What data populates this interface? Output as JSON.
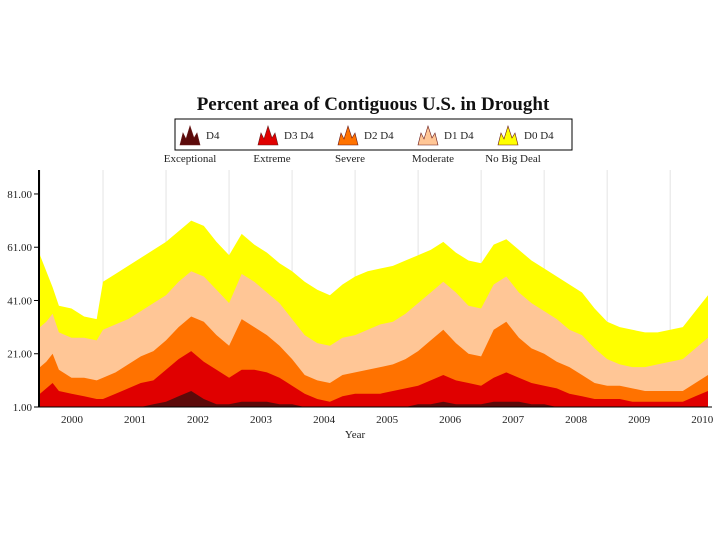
{
  "chart_data": {
    "type": "area",
    "title": "Percent area of Contiguous U.S. in Drought",
    "xlabel": "Year",
    "ylabel": "",
    "ylim": [
      1,
      90
    ],
    "y_ticks": [
      "81.00",
      "61.00",
      "41.00",
      "21.00",
      "1.00"
    ],
    "y_tick_values": [
      81,
      61,
      41,
      21,
      1
    ],
    "x_tick_labels": [
      "2000",
      "2001",
      "2002",
      "2003",
      "2004",
      "2005",
      "2006",
      "2007",
      "2008",
      "2009",
      "2010"
    ],
    "legend_position": "top",
    "stacking": "cumulative",
    "x": [
      2000.0,
      2000.1,
      2000.2,
      2000.3,
      2000.5,
      2000.7,
      2000.9,
      2001.0,
      2001.2,
      2001.4,
      2001.6,
      2001.8,
      2002.0,
      2002.2,
      2002.4,
      2002.6,
      2002.8,
      2003.0,
      2003.2,
      2003.4,
      2003.6,
      2003.8,
      2004.0,
      2004.2,
      2004.4,
      2004.6,
      2004.8,
      2005.0,
      2005.2,
      2005.4,
      2005.6,
      2005.8,
      2006.0,
      2006.2,
      2006.4,
      2006.6,
      2006.8,
      2007.0,
      2007.2,
      2007.4,
      2007.6,
      2007.8,
      2008.0,
      2008.2,
      2008.4,
      2008.6,
      2008.8,
      2009.0,
      2009.2,
      2009.4,
      2009.6,
      2009.8,
      2010.0,
      2010.2,
      2010.4,
      2010.6
    ],
    "series": [
      {
        "name": "D4",
        "label": "Exceptional",
        "color": "#5c0a0a",
        "values": [
          1,
          1,
          1,
          1,
          1,
          1,
          1,
          1,
          1,
          1,
          1,
          2,
          3,
          5,
          7,
          4,
          2,
          2,
          3,
          3,
          3,
          2,
          2,
          1,
          1,
          1,
          1,
          1,
          1,
          1,
          1,
          1,
          2,
          2,
          3,
          2,
          2,
          2,
          3,
          3,
          3,
          2,
          2,
          1,
          1,
          1,
          1,
          1,
          1,
          1,
          1,
          1,
          1,
          1,
          1,
          1
        ]
      },
      {
        "name": "D3 D4",
        "label": "Extreme",
        "color": "#e00000",
        "values": [
          6,
          8,
          10,
          7,
          6,
          5,
          4,
          4,
          6,
          8,
          10,
          11,
          15,
          19,
          22,
          18,
          15,
          12,
          15,
          15,
          14,
          12,
          9,
          6,
          4,
          3,
          5,
          6,
          6,
          6,
          7,
          8,
          9,
          11,
          13,
          11,
          10,
          9,
          12,
          14,
          12,
          10,
          9,
          8,
          6,
          5,
          4,
          4,
          4,
          3,
          3,
          3,
          3,
          3,
          5,
          7
        ]
      },
      {
        "name": "D2 D4",
        "label": "Severe",
        "color": "#ff7200",
        "values": [
          16,
          18,
          21,
          15,
          12,
          12,
          11,
          12,
          14,
          17,
          20,
          22,
          26,
          31,
          35,
          33,
          28,
          24,
          34,
          31,
          28,
          24,
          19,
          13,
          11,
          10,
          13,
          14,
          15,
          16,
          17,
          19,
          22,
          26,
          30,
          25,
          21,
          20,
          30,
          33,
          27,
          23,
          21,
          18,
          16,
          13,
          10,
          9,
          9,
          8,
          7,
          7,
          7,
          7,
          10,
          13
        ]
      },
      {
        "name": "D1 D4",
        "label": "Moderate",
        "color": "#ffc696",
        "values": [
          31,
          33,
          36,
          29,
          27,
          27,
          26,
          30,
          32,
          34,
          37,
          40,
          43,
          48,
          52,
          50,
          45,
          40,
          51,
          48,
          44,
          40,
          34,
          28,
          25,
          24,
          27,
          28,
          30,
          32,
          33,
          36,
          40,
          44,
          48,
          44,
          39,
          38,
          47,
          50,
          44,
          40,
          37,
          34,
          30,
          28,
          23,
          19,
          17,
          16,
          16,
          17,
          18,
          19,
          23,
          27
        ]
      },
      {
        "name": "D0 D4",
        "label": "No Big Deal",
        "color": "#ffff00",
        "values": [
          58,
          52,
          46,
          39,
          38,
          35,
          34,
          48,
          51,
          54,
          57,
          60,
          63,
          67,
          71,
          69,
          63,
          58,
          66,
          62,
          59,
          55,
          52,
          48,
          45,
          43,
          47,
          50,
          52,
          53,
          54,
          56,
          58,
          60,
          63,
          59,
          56,
          55,
          62,
          64,
          60,
          56,
          53,
          50,
          47,
          44,
          38,
          33,
          31,
          30,
          29,
          29,
          30,
          31,
          37,
          43
        ]
      }
    ]
  }
}
